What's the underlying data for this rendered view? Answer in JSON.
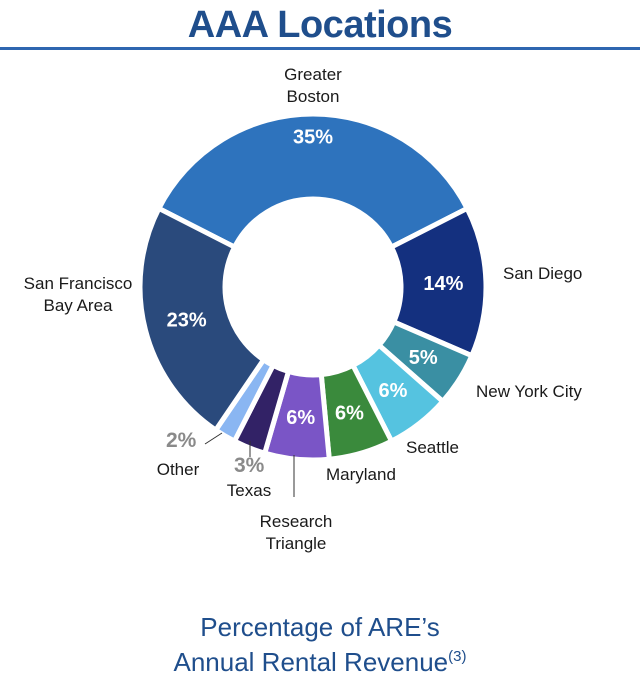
{
  "title": "AAA Locations",
  "subtitle": {
    "line1": "Percentage of ARE’s",
    "line2": "Annual Rental Revenue",
    "footnote": "(3)"
  },
  "chart_data": {
    "type": "pie",
    "variant": "donut",
    "title": "AAA Locations",
    "caption": "Percentage of ARE’s Annual Rental Revenue(3)",
    "unit": "%",
    "categories": [
      "Greater Boston",
      "San Diego",
      "New York City",
      "Seattle",
      "Maryland",
      "Research Triangle",
      "Texas",
      "Other",
      "San Francisco Bay Area"
    ],
    "values": [
      35,
      14,
      5,
      6,
      6,
      6,
      3,
      2,
      23
    ],
    "value_labels": [
      "35%",
      "14%",
      "5%",
      "6%",
      "6%",
      "6%",
      "3%",
      "2%",
      "23%"
    ],
    "colors": [
      "#2e73bd",
      "#14307f",
      "#3a8fa3",
      "#55c3e0",
      "#3a8a3c",
      "#7a55c6",
      "#322266",
      "#8ab6f2",
      "#2a4a7c"
    ],
    "legend": "none (direct labels)",
    "order": "clockwise from top"
  },
  "labels": {
    "boston": [
      "Greater",
      "Boston"
    ],
    "san_diego": "San Diego",
    "nyc": "New York City",
    "seattle": "Seattle",
    "maryland": "Maryland",
    "rt": [
      "Research",
      "Triangle"
    ],
    "texas": "Texas",
    "other": "Other",
    "sf": [
      "San Francisco",
      "Bay Area"
    ],
    "texas_pct": "3%",
    "other_pct": "2%"
  }
}
